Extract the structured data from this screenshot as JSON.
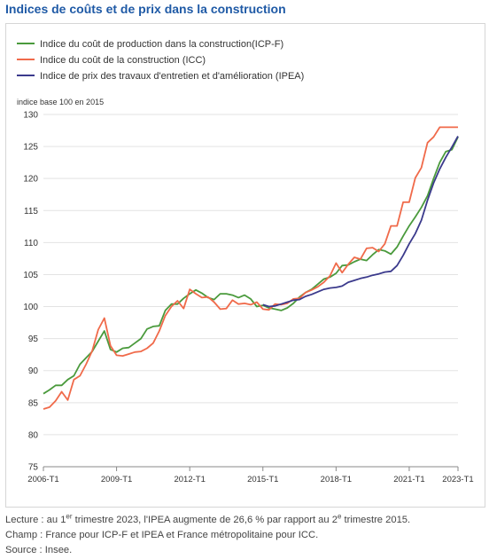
{
  "title": "Indices de coûts et de prix dans la construction",
  "chart_data": {
    "type": "line",
    "ylabel": "indice base 100 en 2015",
    "ylim": [
      75,
      130
    ],
    "yticks": [
      75,
      80,
      85,
      90,
      95,
      100,
      105,
      110,
      115,
      120,
      125,
      130
    ],
    "xlim": [
      2006.0,
      2023.0
    ],
    "xtick_labels": [
      "2006-T1",
      "2009-T1",
      "2012-T1",
      "2015-T1",
      "2018-T1",
      "2021-T1",
      "2023-T1"
    ],
    "xtick_values": [
      2006.0,
      2009.0,
      2012.0,
      2015.0,
      2018.0,
      2021.0,
      2023.0
    ],
    "grid": "horizontal",
    "legend_position": "top-left",
    "series": [
      {
        "name": "Indice du coût de production dans la construction(ICP-F)",
        "color": "#4a9a3c",
        "x": [
          2006.0,
          2006.25,
          2006.5,
          2006.75,
          2007.0,
          2007.25,
          2007.5,
          2007.75,
          2008.0,
          2008.25,
          2008.5,
          2008.75,
          2009.0,
          2009.25,
          2009.5,
          2009.75,
          2010.0,
          2010.25,
          2010.5,
          2010.75,
          2011.0,
          2011.25,
          2011.5,
          2011.75,
          2012.0,
          2012.25,
          2012.5,
          2012.75,
          2013.0,
          2013.25,
          2013.5,
          2013.75,
          2014.0,
          2014.25,
          2014.5,
          2014.75,
          2015.0,
          2015.25,
          2015.5,
          2015.75,
          2016.0,
          2016.25,
          2016.5,
          2016.75,
          2017.0,
          2017.25,
          2017.5,
          2017.75,
          2018.0,
          2018.25,
          2018.5,
          2018.75,
          2019.0,
          2019.25,
          2019.5,
          2019.75,
          2020.0,
          2020.25,
          2020.5,
          2020.75,
          2021.0,
          2021.25,
          2021.5,
          2021.75,
          2022.0,
          2022.25,
          2022.5,
          2022.75,
          2023.0
        ],
        "values": [
          86.4,
          87.0,
          87.7,
          87.7,
          88.6,
          89.2,
          91.0,
          92.0,
          93.0,
          94.6,
          96.2,
          93.3,
          92.9,
          93.5,
          93.6,
          94.3,
          95.0,
          96.5,
          96.9,
          97.0,
          99.4,
          100.4,
          100.4,
          101.3,
          102.0,
          102.6,
          102.1,
          101.4,
          101.1,
          102.0,
          102.0,
          101.8,
          101.4,
          101.8,
          101.2,
          100.0,
          100.2,
          99.8,
          99.6,
          99.4,
          99.8,
          100.5,
          101.5,
          102.2,
          102.7,
          103.5,
          104.3,
          104.6,
          105.2,
          106.4,
          106.5,
          107.0,
          107.4,
          107.2,
          108.1,
          108.9,
          108.7,
          108.2,
          109.3,
          111.0,
          112.6,
          114.0,
          115.5,
          117.3,
          120.0,
          122.5,
          124.2,
          124.5,
          126.5
        ]
      },
      {
        "name": "Indice du coût de la construction (ICC)",
        "color": "#f06a4a",
        "x": [
          2006.0,
          2006.25,
          2006.5,
          2006.75,
          2007.0,
          2007.25,
          2007.5,
          2007.75,
          2008.0,
          2008.25,
          2008.5,
          2008.75,
          2009.0,
          2009.25,
          2009.5,
          2009.75,
          2010.0,
          2010.25,
          2010.5,
          2010.75,
          2011.0,
          2011.25,
          2011.5,
          2011.75,
          2012.0,
          2012.25,
          2012.5,
          2012.75,
          2013.0,
          2013.25,
          2013.5,
          2013.75,
          2014.0,
          2014.25,
          2014.5,
          2014.75,
          2015.0,
          2015.25,
          2015.5,
          2015.75,
          2016.0,
          2016.25,
          2016.5,
          2016.75,
          2017.0,
          2017.25,
          2017.5,
          2017.75,
          2018.0,
          2018.25,
          2018.5,
          2018.75,
          2019.0,
          2019.25,
          2019.5,
          2019.75,
          2020.0,
          2020.25,
          2020.5,
          2020.75,
          2021.0,
          2021.25,
          2021.5,
          2021.75,
          2022.0,
          2022.25,
          2022.5,
          2022.75,
          2023.0
        ],
        "values": [
          84.0,
          84.3,
          85.3,
          86.7,
          85.4,
          88.6,
          89.2,
          91.0,
          93.1,
          96.4,
          98.2,
          93.9,
          92.4,
          92.3,
          92.6,
          92.9,
          93.0,
          93.5,
          94.3,
          96.2,
          98.6,
          100.0,
          100.9,
          99.7,
          102.7,
          102.0,
          101.4,
          101.5,
          100.7,
          99.6,
          99.7,
          101.0,
          100.4,
          100.5,
          100.3,
          100.7,
          99.6,
          99.5,
          100.4,
          100.3,
          100.5,
          101.2,
          101.3,
          102.2,
          102.6,
          103.1,
          103.8,
          104.8,
          106.8,
          105.3,
          106.6,
          107.7,
          107.4,
          109.1,
          109.2,
          108.6,
          109.8,
          112.6,
          112.6,
          116.3,
          116.3,
          120.1,
          121.7,
          125.6,
          126.5,
          128.0,
          128.0,
          128.0,
          128.0
        ]
      },
      {
        "name": "Indice de prix des travaux d'entretien et d'amélioration (IPEA)",
        "color": "#3b3a8c",
        "x": [
          2015.0,
          2015.25,
          2015.5,
          2015.75,
          2016.0,
          2016.25,
          2016.5,
          2016.75,
          2017.0,
          2017.25,
          2017.5,
          2017.75,
          2018.0,
          2018.25,
          2018.5,
          2018.75,
          2019.0,
          2019.25,
          2019.5,
          2019.75,
          2020.0,
          2020.25,
          2020.5,
          2020.75,
          2021.0,
          2021.25,
          2021.5,
          2021.75,
          2022.0,
          2022.25,
          2022.5,
          2022.75,
          2023.0
        ],
        "values": [
          100.3,
          100.0,
          100.1,
          100.4,
          100.7,
          101.0,
          101.1,
          101.6,
          101.9,
          102.3,
          102.7,
          102.9,
          103.0,
          103.2,
          103.8,
          104.1,
          104.4,
          104.6,
          104.9,
          105.1,
          105.4,
          105.5,
          106.4,
          108.0,
          109.8,
          111.4,
          113.5,
          116.6,
          119.3,
          121.5,
          123.3,
          124.9,
          126.6
        ]
      }
    ]
  },
  "footnotes": {
    "lecture_prefix": "Lecture : au 1",
    "lecture_sup1": "er",
    "lecture_mid": " trimestre 2023, l'IPEA augmente de 26,6 % par rapport au 2",
    "lecture_sup2": "e",
    "lecture_suffix": " trimestre 2015.",
    "champ": "Champ : France pour ICP-F et IPEA et France métropolitaine pour ICC.",
    "source": "Source : Insee."
  }
}
